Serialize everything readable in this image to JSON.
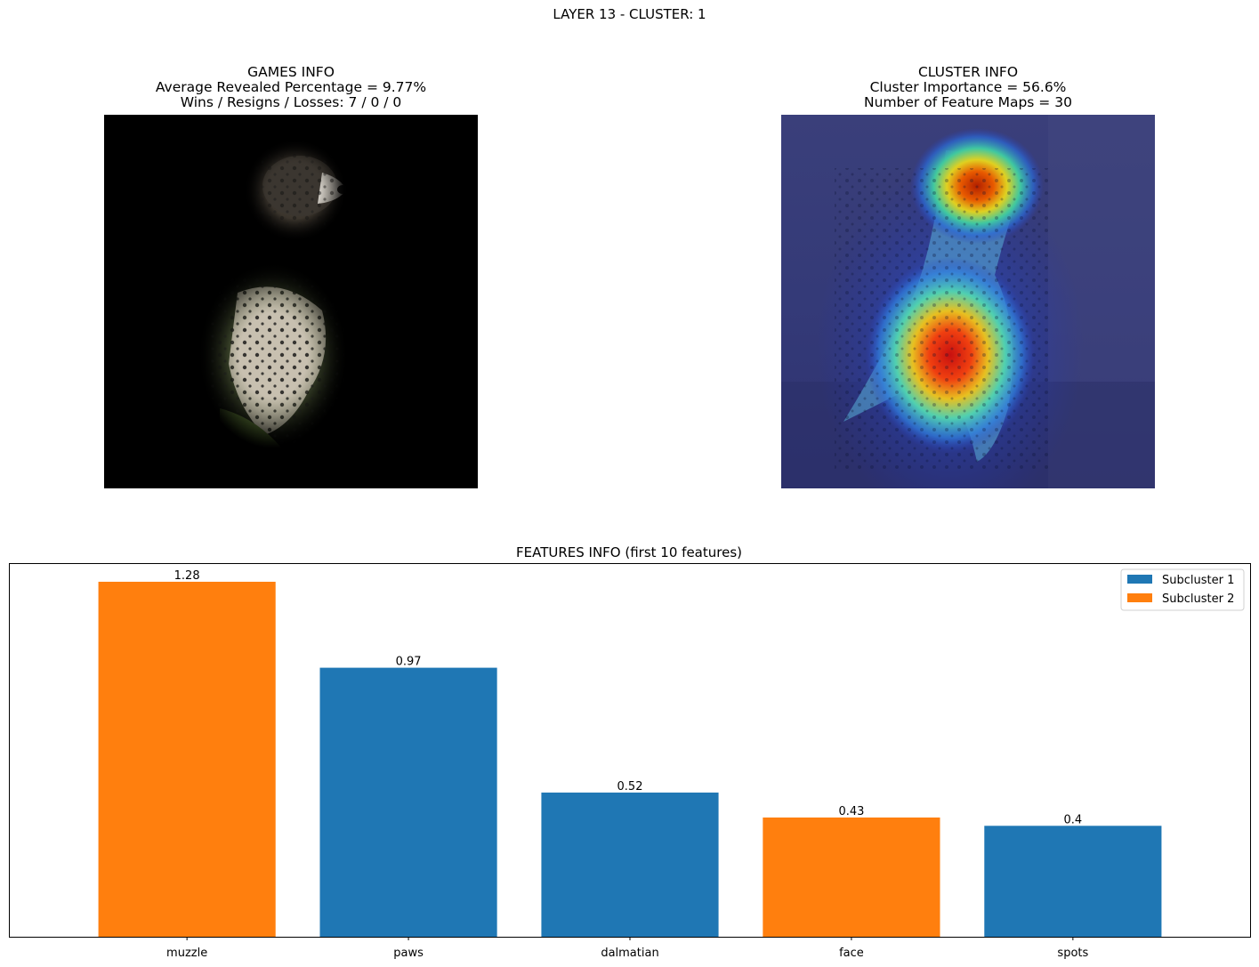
{
  "suptitle": "LAYER 13 - CLUSTER: 1",
  "games_info": {
    "heading": "GAMES INFO",
    "line1": "Average Revealed Percentage = 9.77%",
    "line2": "Wins / Resigns / Losses: 7 / 0 / 0"
  },
  "cluster_info": {
    "heading": "CLUSTER INFO",
    "line1": "Cluster Importance = 56.6%",
    "line2": "Number of Feature Maps = 30"
  },
  "colors": {
    "subcluster_1": "#1f77b4",
    "subcluster_2": "#ff7f0e"
  },
  "chart_data": {
    "type": "bar",
    "title": "FEATURES INFO (first 10 features)",
    "categories": [
      "muzzle",
      "paws",
      "dalmatian",
      "face",
      "spots"
    ],
    "values": [
      1.28,
      0.97,
      0.52,
      0.43,
      0.4
    ],
    "value_labels": [
      "1.28",
      "0.97",
      "0.52",
      "0.43",
      "0.4"
    ],
    "subcluster": [
      2,
      1,
      1,
      2,
      1
    ],
    "legend": [
      "Subcluster 1",
      "Subcluster 2"
    ],
    "legend_position": "top-right",
    "ylim": [
      0,
      1.344
    ],
    "grid": false,
    "yticks_visible": false
  }
}
